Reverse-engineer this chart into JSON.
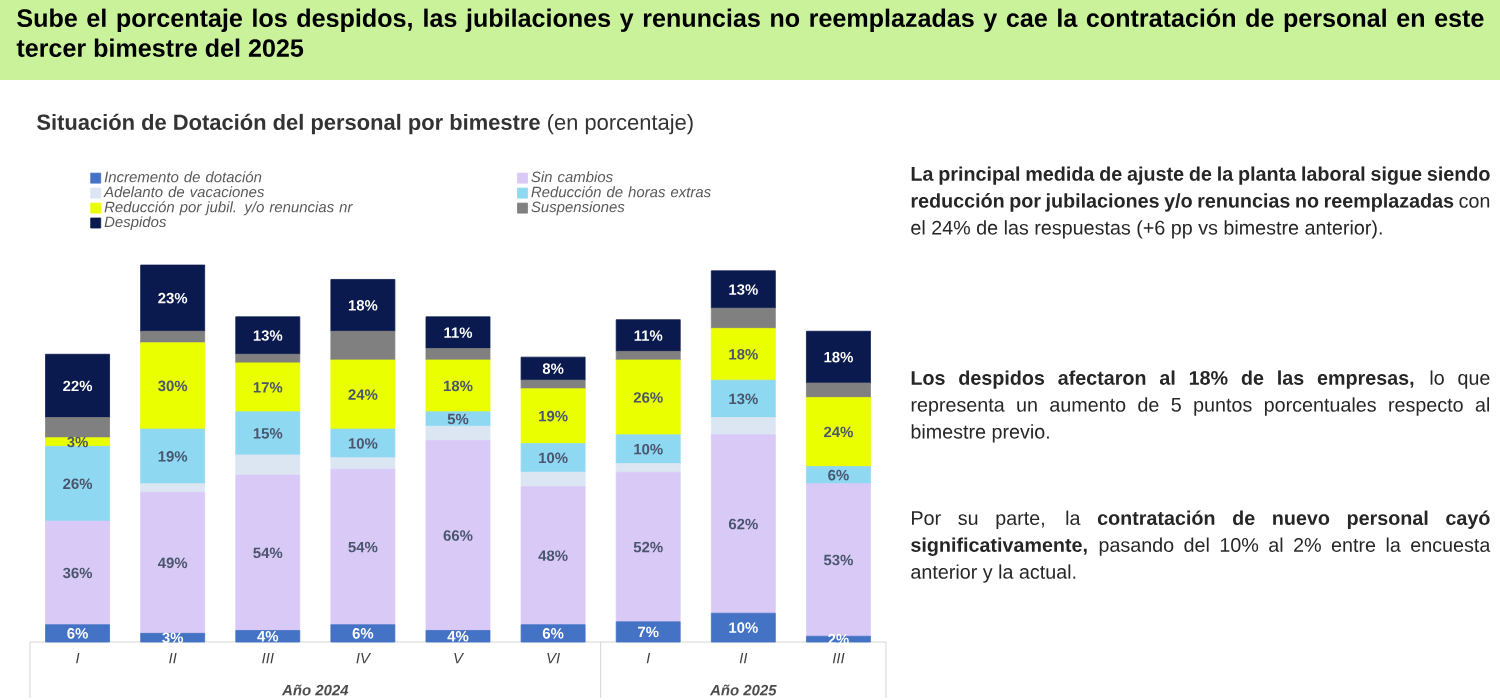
{
  "chart_data": {
    "type": "bar",
    "stacked": true,
    "title": "Sube el porcentaje los despidos, las jubilaciones y renuncias no reemplazadas y cae la contratación de personal en este tercer bimestre del 2025",
    "subtitle": "**Situación de Dotación del personal por bimestre** (en porcentaje)",
    "categories": [
      "I",
      "II",
      "III",
      "IV",
      "V",
      "VI",
      "I",
      "II",
      "III"
    ],
    "series": [
      {
        "name": "Incremento de dotación",
        "color": "#4472c4",
        "values": [
          6,
          3,
          4,
          6,
          4,
          6,
          7,
          10,
          2
        ],
        "value_labels": [
          "6%",
          "3%",
          "4%",
          "6%",
          "4%",
          "6%",
          "7%",
          "10%",
          "2%"
        ]
      },
      {
        "name": "Sin cambios",
        "color": "#d9c9f7",
        "values": [
          36,
          49,
          54,
          54,
          66,
          48,
          52,
          62,
          53
        ],
        "value_labels": [
          "36%",
          "49%",
          "54%",
          "54%",
          "66%",
          "48%",
          "52%",
          "62%",
          "53%"
        ]
      },
      {
        "name": "Adelanto de vacaciones",
        "color": "#dce6f2",
        "values": [
          0,
          3,
          7,
          4,
          5,
          5,
          3,
          6,
          0
        ],
        "value_labels": [
          null,
          null,
          null,
          null,
          null,
          null,
          null,
          null,
          null
        ]
      },
      {
        "name": "Reducción de horas extras",
        "color": "#8fd8f2",
        "values": [
          26,
          19,
          15,
          10,
          5,
          10,
          10,
          13,
          6
        ],
        "value_labels": [
          "26%",
          "19%",
          "15%",
          "10%",
          "5%",
          "10%",
          "10%",
          "13%",
          "6%"
        ]
      },
      {
        "name": "Reducción por jubil. y/o renuncias nr",
        "color": "#eaff00",
        "values": [
          3,
          30,
          17,
          24,
          18,
          19,
          26,
          18,
          24
        ],
        "value_labels": [
          "3%",
          "30%",
          "17%",
          "24%",
          "18%",
          "19%",
          "26%",
          "18%",
          "24%"
        ]
      },
      {
        "name": "Suspensiones",
        "color": "#808080",
        "values": [
          7,
          4,
          3,
          10,
          4,
          3,
          3,
          7,
          5
        ],
        "value_labels": [
          null,
          null,
          null,
          null,
          null,
          null,
          null,
          null,
          null
        ]
      },
      {
        "name": "Despidos",
        "color": "#0b1a4e",
        "values": [
          22,
          23,
          13,
          18,
          11,
          8,
          11,
          13,
          18
        ],
        "value_labels": [
          "22%",
          "23%",
          "13%",
          "18%",
          "11%",
          "8%",
          "11%",
          "13%",
          "18%"
        ]
      }
    ],
    "legend": "top left",
    "annotations": [
      "Año 2024",
      "Año 2025",
      "**La principal medida de ajuste de la planta laboral sigue siendo reducción por jubilaciones y/o renuncias no reemplazadas** con el 24% de las respuestas (+6 pp vs bimestre anterior).",
      "**Los despidos afectaron al 18% de las empresas,** lo que representa un aumento de 5 puntos porcentuales respecto al bimestre previo.",
      "Por su parte, la **contratación de nuevo personal cayó significativamente,** pasando del 10% al 2% entre la encuesta anterior y la actual."
    ]
  }
}
